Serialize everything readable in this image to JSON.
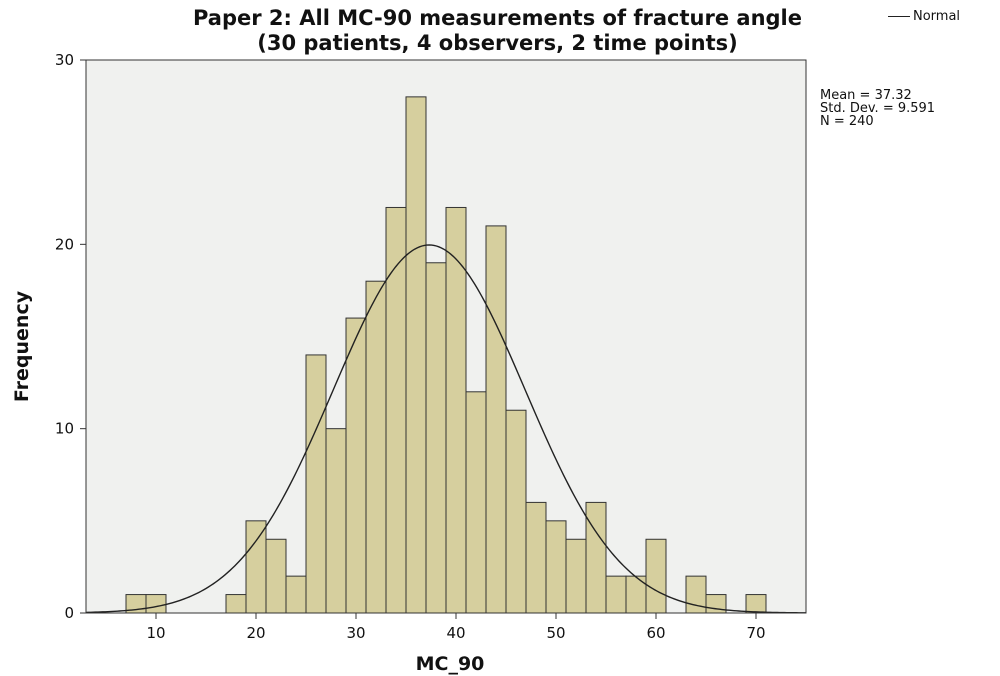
{
  "chart_data": {
    "type": "bar",
    "title": "Paper 2: All MC-90 measurements of fracture angle",
    "subtitle": "(30 patients, 4 observers, 2 time points)",
    "xlabel": "MC_90",
    "ylabel": "Frequency",
    "xlim": [
      3,
      75
    ],
    "ylim": [
      0,
      30
    ],
    "x_ticks": [
      10,
      20,
      30,
      40,
      50,
      60,
      70
    ],
    "y_ticks": [
      0,
      10,
      20,
      30
    ],
    "bin_width": 2,
    "bins": [
      {
        "start": 7,
        "end": 9,
        "count": 1
      },
      {
        "start": 9,
        "end": 11,
        "count": 1
      },
      {
        "start": 11,
        "end": 13,
        "count": 0
      },
      {
        "start": 13,
        "end": 15,
        "count": 0
      },
      {
        "start": 15,
        "end": 17,
        "count": 0
      },
      {
        "start": 17,
        "end": 19,
        "count": 1
      },
      {
        "start": 19,
        "end": 21,
        "count": 5
      },
      {
        "start": 21,
        "end": 23,
        "count": 4
      },
      {
        "start": 23,
        "end": 25,
        "count": 2
      },
      {
        "start": 25,
        "end": 27,
        "count": 14
      },
      {
        "start": 27,
        "end": 29,
        "count": 10
      },
      {
        "start": 29,
        "end": 31,
        "count": 16
      },
      {
        "start": 31,
        "end": 33,
        "count": 18
      },
      {
        "start": 33,
        "end": 35,
        "count": 22
      },
      {
        "start": 35,
        "end": 37,
        "count": 28
      },
      {
        "start": 37,
        "end": 39,
        "count": 19
      },
      {
        "start": 39,
        "end": 41,
        "count": 22
      },
      {
        "start": 41,
        "end": 43,
        "count": 12
      },
      {
        "start": 43,
        "end": 45,
        "count": 21
      },
      {
        "start": 45,
        "end": 47,
        "count": 11
      },
      {
        "start": 47,
        "end": 49,
        "count": 6
      },
      {
        "start": 49,
        "end": 51,
        "count": 5
      },
      {
        "start": 51,
        "end": 53,
        "count": 4
      },
      {
        "start": 53,
        "end": 55,
        "count": 6
      },
      {
        "start": 55,
        "end": 57,
        "count": 2
      },
      {
        "start": 57,
        "end": 59,
        "count": 2
      },
      {
        "start": 59,
        "end": 61,
        "count": 4
      },
      {
        "start": 61,
        "end": 63,
        "count": 0
      },
      {
        "start": 63,
        "end": 65,
        "count": 2
      },
      {
        "start": 65,
        "end": 67,
        "count": 1
      },
      {
        "start": 67,
        "end": 69,
        "count": 0
      },
      {
        "start": 69,
        "end": 71,
        "count": 1
      }
    ],
    "normal_curve": {
      "label": "Normal",
      "mean": 37.32,
      "std_dev": 9.591,
      "n": 240
    },
    "stats_text": [
      "Mean = 37.32",
      "Std. Dev. = 9.591",
      "N = 240"
    ],
    "legend": [
      "Normal"
    ],
    "legend_position": "top-right",
    "grid": false,
    "colors": {
      "bar_fill": "#d6cf9e",
      "bar_stroke": "#333333",
      "plot_background": "#f0f1ef",
      "curve": "#222222"
    }
  }
}
